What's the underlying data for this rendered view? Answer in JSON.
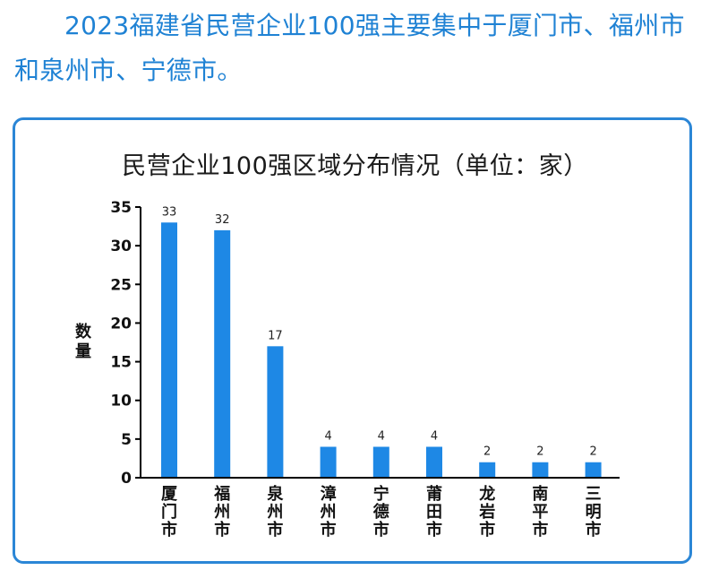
{
  "headline": "2023福建省民营企业100强主要集中于厦门市、福州市和泉州市、宁德市。",
  "chart_data": {
    "type": "bar",
    "title": "民营企业100强区域分布情况（单位：家）",
    "xlabel": "",
    "ylabel": "数量",
    "categories": [
      "厦门市",
      "福州市",
      "泉州市",
      "漳州市",
      "宁德市",
      "莆田市",
      "龙岩市",
      "南平市",
      "三明市"
    ],
    "values": [
      33,
      32,
      17,
      4,
      4,
      4,
      2,
      2,
      2
    ],
    "ylim": [
      0,
      35
    ],
    "yticks": [
      0,
      5,
      10,
      15,
      20,
      25,
      30,
      35
    ],
    "bar_color": "#1e88e5",
    "grid": false,
    "legend": "none"
  },
  "colors": {
    "headline": "#1f82d4",
    "card_border": "#2b86d6"
  }
}
